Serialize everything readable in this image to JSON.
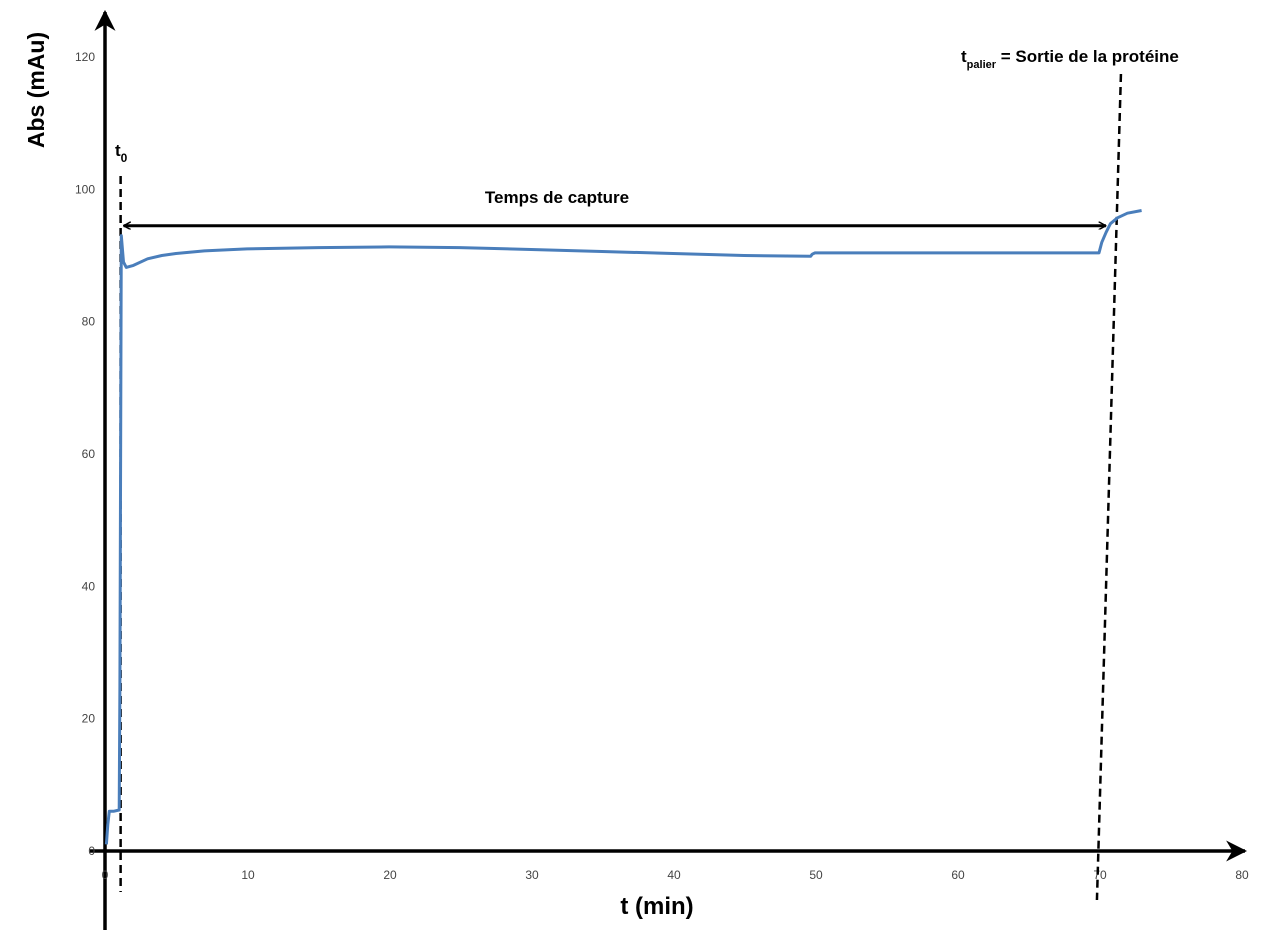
{
  "chart_data": {
    "type": "line",
    "xlabel": "t (min)",
    "ylabel": "Abs (mAu)",
    "xlim": [
      0,
      80
    ],
    "ylim": [
      0,
      120
    ],
    "x_ticks": [
      0,
      10,
      20,
      30,
      40,
      50,
      60,
      70,
      80
    ],
    "y_ticks": [
      0,
      20,
      40,
      60,
      80,
      100,
      120
    ],
    "grid": false,
    "legend": "none",
    "colors": {
      "series": "#4a7ebb",
      "axes": "#000000"
    },
    "series": [
      {
        "x": [
          0.1,
          0.2,
          0.3,
          0.6,
          1.0,
          1.05,
          1.15,
          1.3,
          1.5,
          2.0,
          3.0,
          4.0,
          5.0,
          7.0,
          10.0,
          15.0,
          20.0,
          25.0,
          30.0,
          35.0,
          40.0,
          45.0,
          49.7,
          49.8,
          50.0,
          55.0,
          60.0,
          65.0,
          70.0,
          70.2,
          70.5,
          70.8,
          71.3,
          72.0,
          73.0
        ],
        "y": [
          1,
          4,
          6,
          6,
          6.2,
          25,
          93,
          89,
          88.2,
          88.5,
          89.5,
          90,
          90.3,
          90.7,
          91,
          91.2,
          91.3,
          91.2,
          90.9,
          90.6,
          90.3,
          90,
          89.9,
          90.2,
          90.4,
          90.4,
          90.4,
          90.4,
          90.4,
          92,
          93.5,
          94.8,
          95.7,
          96.4,
          96.8
        ]
      }
    ],
    "annotations": {
      "t0_label": "t",
      "t0_sub": "0",
      "t0_x": 1.1,
      "palier_label": "t",
      "palier_sub": "palier",
      "palier_text": " = Sortie de la protéine",
      "palier_x": 70.7,
      "capture_label": "Temps de capture",
      "capture_y": 94.5
    }
  }
}
